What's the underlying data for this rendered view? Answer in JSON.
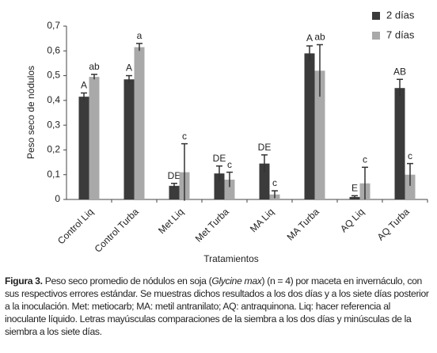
{
  "chart_data": {
    "type": "bar",
    "y_label": "Peso seco de nódulos",
    "x_label": "Tratamientos",
    "categories": [
      "Control Liq",
      "Control Turba",
      "Met Liq",
      "Met Turba",
      "MA Liq",
      "MA Turba",
      "AQ Liq",
      "AQ Turba"
    ],
    "series": [
      {
        "name": "2 días",
        "color": "#3b3b3b",
        "values": [
          0.415,
          0.485,
          0.055,
          0.105,
          0.145,
          0.59,
          0.01,
          0.45
        ],
        "errors": [
          0.015,
          0.015,
          0.01,
          0.03,
          0.035,
          0.03,
          0.005,
          0.035
        ],
        "letters": [
          "A",
          "A",
          "DE",
          "DE",
          "DE",
          "A",
          "E",
          "AB"
        ]
      },
      {
        "name": "7 días",
        "color": "#a9a9a9",
        "values": [
          0.495,
          0.615,
          0.11,
          0.08,
          0.02,
          0.52,
          0.065,
          0.1
        ],
        "errors": [
          0.01,
          0.015,
          0.115,
          0.03,
          0.015,
          0.105,
          0.065,
          0.045
        ],
        "letters": [
          "ab",
          "a",
          "c",
          "c",
          "c",
          "ab",
          "c",
          "c"
        ]
      }
    ],
    "ylim": [
      0,
      0.7
    ],
    "yticks": [
      0,
      {
        "value": 0.1,
        "label": "0,1"
      },
      {
        "value": 0.2,
        "label": "0,2"
      },
      {
        "value": 0.3,
        "label": "0,3"
      },
      {
        "value": 0.4,
        "label": "0,4"
      },
      {
        "value": 0.5,
        "label": "0,5"
      },
      {
        "value": 0.6,
        "label": "0,6"
      },
      {
        "value": 0.7,
        "label": "0,7"
      }
    ],
    "legend": "top-right"
  },
  "caption": {
    "label": "Figura 3.",
    "text_before": "Peso seco promedio de nódulos en soja (",
    "species": "Glycine max",
    "text_after": ")  (n = 4) por maceta en invernáculo, con sus respectivos errores estándar. Se muestras dichos resultados a los dos días y a los siete días posterior a la inoculación. Met: metiocarb; MA: metil antranilato; AQ: antraquinona. Liq: hacer referencia al inoculante líquido. Letras mayúsculas comparaciones de la siembra a los dos días y minúsculas de la siembra a los siete días."
  }
}
